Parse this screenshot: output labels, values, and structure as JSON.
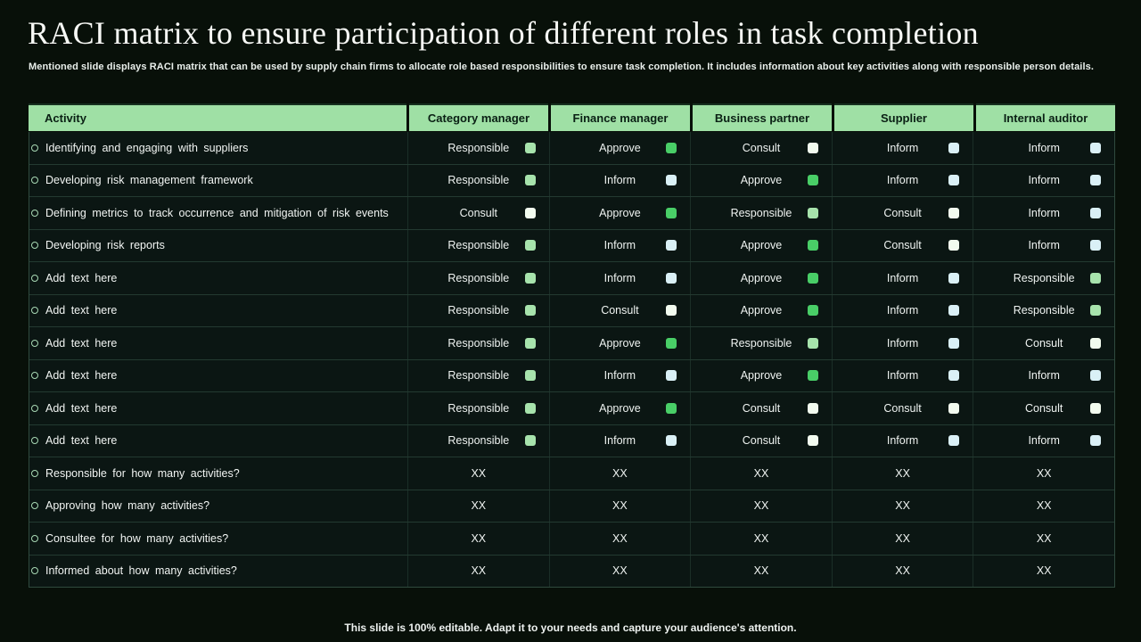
{
  "slide": {
    "title": "RACI matrix to ensure participation of different roles in task completion",
    "subtitle": "Mentioned slide displays RACI matrix that can be used by supply chain firms to allocate role based responsibilities to ensure task completion. It includes information about key activities along with responsible person details.",
    "footer": "This slide is 100% editable. Adapt it to your needs and capture your audience's attention."
  },
  "colors": {
    "header_bg": "#9FE0A5",
    "header_text": "#0A2014",
    "raci_markers": {
      "Responsible": "#A7E3AC",
      "Approve": "#49CE67",
      "Consult": "#F2FBEF",
      "Inform": "#DAF0F6"
    }
  },
  "table": {
    "columns": [
      "Activity",
      "Category manager",
      "Finance manager",
      "Business partner",
      "Supplier",
      "Internal auditor"
    ],
    "rows": [
      {
        "activity": "Identifying and engaging with suppliers",
        "cells": [
          "Responsible",
          "Approve",
          "Consult",
          "Inform",
          "Inform"
        ]
      },
      {
        "activity": "Developing risk management framework",
        "cells": [
          "Responsible",
          "Inform",
          "Approve",
          "Inform",
          "Inform"
        ]
      },
      {
        "activity": "Defining metrics to track occurrence and mitigation of risk events",
        "cells": [
          "Consult",
          "Approve",
          "Responsible",
          "Consult",
          "Inform"
        ]
      },
      {
        "activity": "Developing risk reports",
        "cells": [
          "Responsible",
          "Inform",
          "Approve",
          "Consult",
          "Inform"
        ]
      },
      {
        "activity": "Add text here",
        "cells": [
          "Responsible",
          "Inform",
          "Approve",
          "Inform",
          "Responsible"
        ]
      },
      {
        "activity": "Add text here",
        "cells": [
          "Responsible",
          "Consult",
          "Approve",
          "Inform",
          "Responsible"
        ]
      },
      {
        "activity": "Add text here",
        "cells": [
          "Responsible",
          "Approve",
          "Responsible",
          "Inform",
          "Consult"
        ]
      },
      {
        "activity": "Add text here",
        "cells": [
          "Responsible",
          "Inform",
          "Approve",
          "Inform",
          "Inform"
        ]
      },
      {
        "activity": "Add text here",
        "cells": [
          "Responsible",
          "Approve",
          "Consult",
          "Consult",
          "Consult"
        ]
      },
      {
        "activity": "Add text here",
        "cells": [
          "Responsible",
          "Inform",
          "Consult",
          "Inform",
          "Inform"
        ]
      },
      {
        "activity": "Responsible for how many activities?",
        "cells": [
          "XX",
          "XX",
          "XX",
          "XX",
          "XX"
        ]
      },
      {
        "activity": "Approving how many activities?",
        "cells": [
          "XX",
          "XX",
          "XX",
          "XX",
          "XX"
        ]
      },
      {
        "activity": "Consultee for how many activities?",
        "cells": [
          "XX",
          "XX",
          "XX",
          "XX",
          "XX"
        ]
      },
      {
        "activity": "Informed about how many activities?",
        "cells": [
          "XX",
          "XX",
          "XX",
          "XX",
          "XX"
        ]
      }
    ]
  }
}
